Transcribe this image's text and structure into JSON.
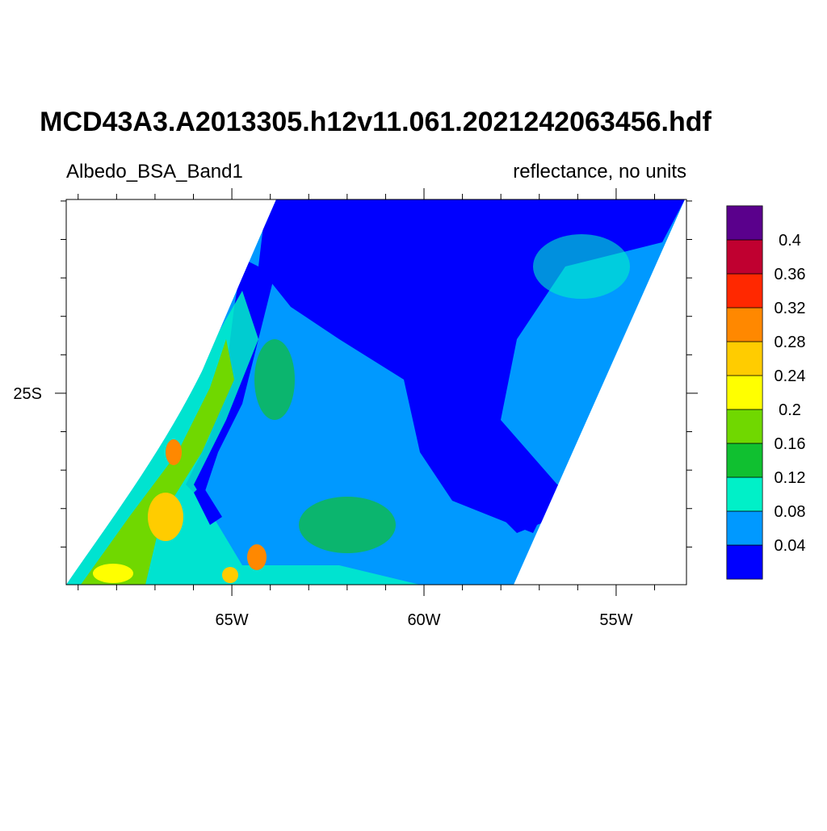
{
  "title": "MCD43A3.A2013305.h12v11.061.2021242063456.hdf",
  "subtitle_left": "Albedo_BSA_Band1",
  "subtitle_right": "reflectance, no units",
  "xlim": [
    -69.31,
    -53.17
  ],
  "ylim": [
    -29.98,
    -19.96
  ],
  "xticks": [
    {
      "value": -65,
      "label": "65W"
    },
    {
      "value": -60,
      "label": "60W"
    },
    {
      "value": -55,
      "label": "55W"
    }
  ],
  "yticks": [
    {
      "value": -25,
      "label": "25S"
    }
  ],
  "xminor": [
    -69,
    -68,
    -67,
    -66,
    -64,
    -63,
    -62,
    -61,
    -59,
    -58,
    -57,
    -56,
    -54
  ],
  "yminor": [
    -29,
    -28,
    -27,
    -26,
    -24,
    -23,
    -22,
    -21,
    -20
  ],
  "colorbar": {
    "levels": [
      0.04,
      0.08,
      0.12,
      0.16,
      0.2,
      0.24,
      0.28,
      0.32,
      0.36,
      0.4
    ],
    "colors": [
      "#0000ff",
      "#0099ff",
      "#00f0c8",
      "#10c030",
      "#70d800",
      "#ffff00",
      "#ffcc00",
      "#ff8800",
      "#ff2800",
      "#c00030",
      "#5a008c"
    ]
  }
}
